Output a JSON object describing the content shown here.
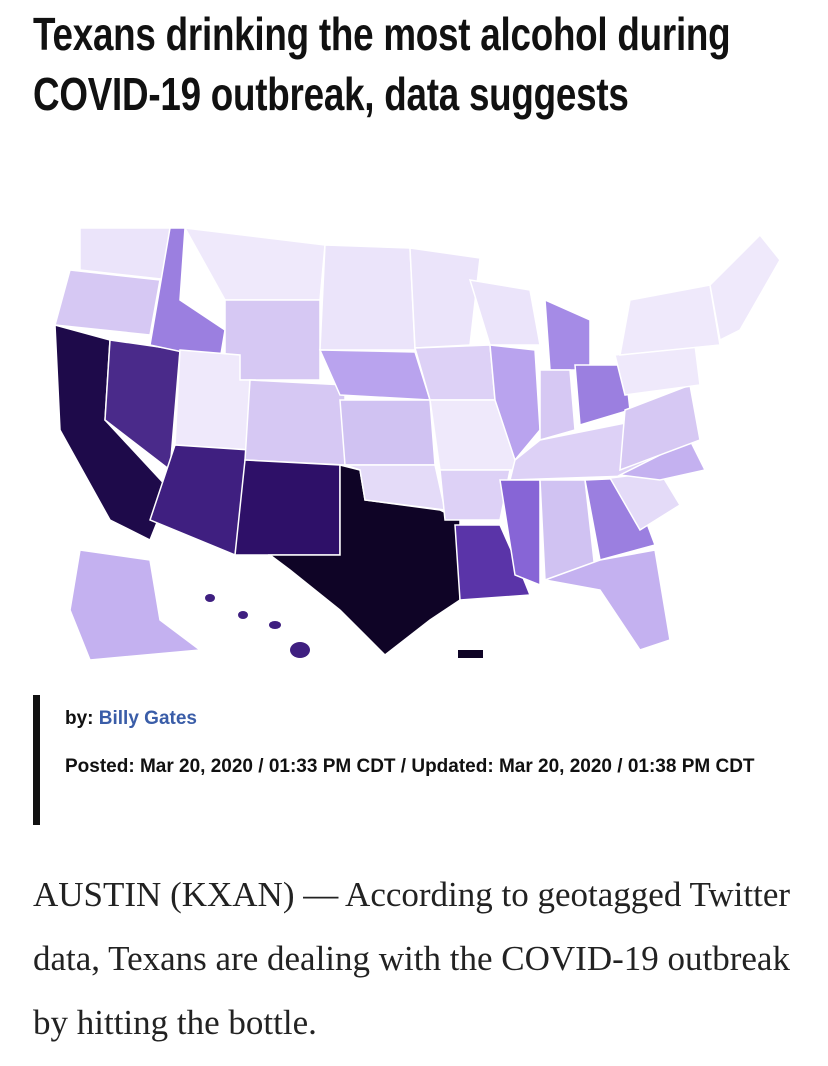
{
  "header": {
    "title": "Texans drinking the most alcohol during COVID-19 outbreak, data suggests"
  },
  "byline": {
    "label": "by:",
    "author": "Billy Gates",
    "posted": "Posted: Mar 20, 2020 / 01:33 PM CDT / Updated: Mar 20, 2020 / 01:38 PM CDT"
  },
  "body": {
    "text": "AUSTIN (KXAN) — According to geotagged Twitter data, Texans are dealing with the COVID-19 outbreak by hitting the bottle."
  }
}
